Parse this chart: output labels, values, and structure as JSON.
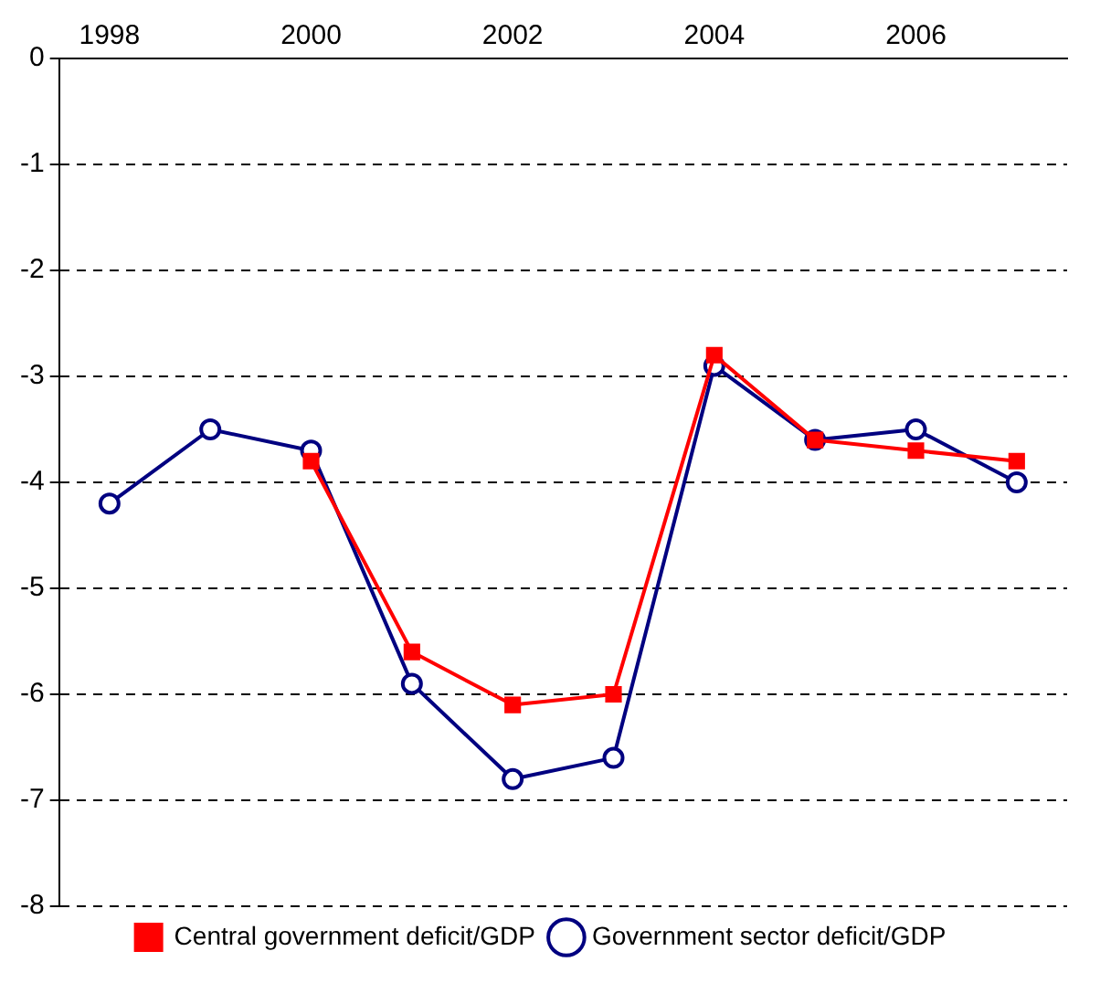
{
  "chart_data": {
    "type": "line",
    "categories": [
      "1998",
      null,
      "2000",
      null,
      "2002",
      null,
      "2004",
      null,
      "2006",
      null
    ],
    "series": [
      {
        "name": "Government sector deficit/GDP",
        "color": "#000080",
        "marker": "circle",
        "values": [
          -4.2,
          -3.5,
          -3.7,
          -5.9,
          -6.8,
          -6.6,
          -2.9,
          -3.6,
          -3.5,
          -4.0
        ]
      },
      {
        "name": "Central government deficit/GDP",
        "color": "#ff0000",
        "marker": "square",
        "values": [
          null,
          null,
          -3.8,
          -5.6,
          -6.1,
          -6.0,
          -2.8,
          -3.6,
          -3.7,
          -3.8
        ]
      }
    ],
    "ylim": [
      -8,
      0
    ],
    "yticks": [
      0,
      -1,
      -2,
      -3,
      -4,
      -5,
      -6,
      -7,
      -8
    ],
    "grid": "y",
    "legend": "bottom",
    "line_style": "solid"
  }
}
